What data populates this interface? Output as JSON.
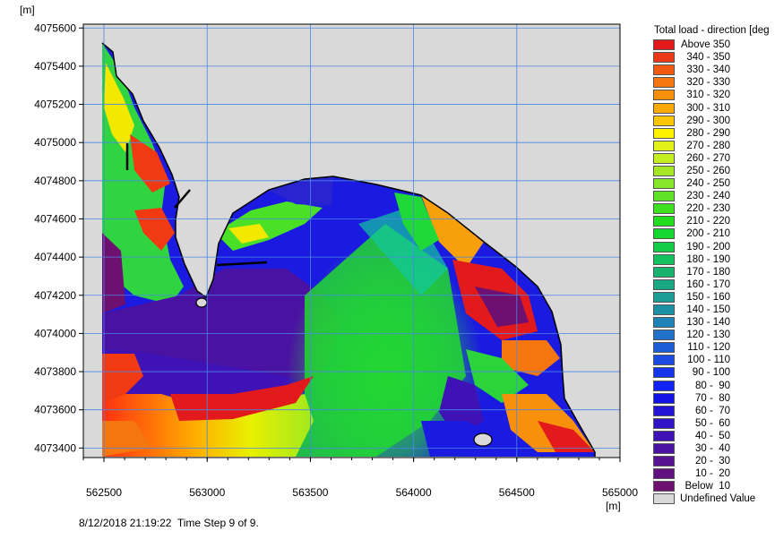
{
  "map": {
    "y_unit": "[m]",
    "x_unit": "[m]",
    "y_ticks": [
      "4075600",
      "4075400",
      "4075200",
      "4075000",
      "4074800",
      "4074600",
      "4074400",
      "4074200",
      "4074000",
      "4073800",
      "4073600",
      "4073400"
    ],
    "x_ticks": [
      "562500",
      "563000",
      "563500",
      "564000",
      "564500",
      "565000"
    ],
    "x_range": [
      562400,
      565000
    ],
    "y_range": [
      4073350,
      4075620
    ],
    "background_color": "#d9d9d9",
    "grid_color": "#4a86e8"
  },
  "legend": {
    "title": "Total load - direction [deg",
    "items": [
      {
        "label": "Above 350",
        "color": "#e31a1c"
      },
      {
        "label": "340 - 350",
        "color": "#ec3a16"
      },
      {
        "label": "330 - 340",
        "color": "#f25a12"
      },
      {
        "label": "320 - 330",
        "color": "#f5760f"
      },
      {
        "label": "310 - 320",
        "color": "#f8900c"
      },
      {
        "label": "300 - 310",
        "color": "#fbaa0a"
      },
      {
        "label": "290 - 300",
        "color": "#fdc508"
      },
      {
        "label": "280 - 290",
        "color": "#fff200"
      },
      {
        "label": "270 - 280",
        "color": "#e0f218"
      },
      {
        "label": "260 - 270",
        "color": "#c5ee20"
      },
      {
        "label": "250 - 260",
        "color": "#a6e826"
      },
      {
        "label": "240 - 250",
        "color": "#86e62a"
      },
      {
        "label": "230 - 240",
        "color": "#5ee228"
      },
      {
        "label": "220 - 230",
        "color": "#3ee020"
      },
      {
        "label": "210 - 220",
        "color": "#21de1e"
      },
      {
        "label": "200 - 210",
        "color": "#14d830"
      },
      {
        "label": "190 - 200",
        "color": "#13cc48"
      },
      {
        "label": "180 - 190",
        "color": "#15c05e"
      },
      {
        "label": "170 - 180",
        "color": "#17b470"
      },
      {
        "label": "160 - 170",
        "color": "#19a882"
      },
      {
        "label": "150 - 160",
        "color": "#1b9c94"
      },
      {
        "label": "140 - 150",
        "color": "#1d90a6"
      },
      {
        "label": "130 - 140",
        "color": "#1f84b8"
      },
      {
        "label": "120 - 130",
        "color": "#1f72c8"
      },
      {
        "label": "110 - 120",
        "color": "#1d5ed6"
      },
      {
        "label": "100 - 110",
        "color": "#1a4ae2"
      },
      {
        "label": "90 - 100",
        "color": "#1636ec"
      },
      {
        "label": "80 -  90",
        "color": "#1122f2"
      },
      {
        "label": "70 -  80",
        "color": "#1212e6"
      },
      {
        "label": "60 -  70",
        "color": "#2414d6"
      },
      {
        "label": "50 -  60",
        "color": "#3214c6"
      },
      {
        "label": "40 -  50",
        "color": "#3e12b4"
      },
      {
        "label": "30 -  40",
        "color": "#4a12a2"
      },
      {
        "label": "20 -  30",
        "color": "#561290"
      },
      {
        "label": "10 -  20",
        "color": "#621280"
      },
      {
        "label": "Below  10",
        "color": "#6e1070"
      },
      {
        "label": "Undefined Value",
        "color": "#d9d9d9"
      }
    ]
  },
  "footer": {
    "text": "8/12/2018 21:19:22  Time Step 9 of 9."
  }
}
